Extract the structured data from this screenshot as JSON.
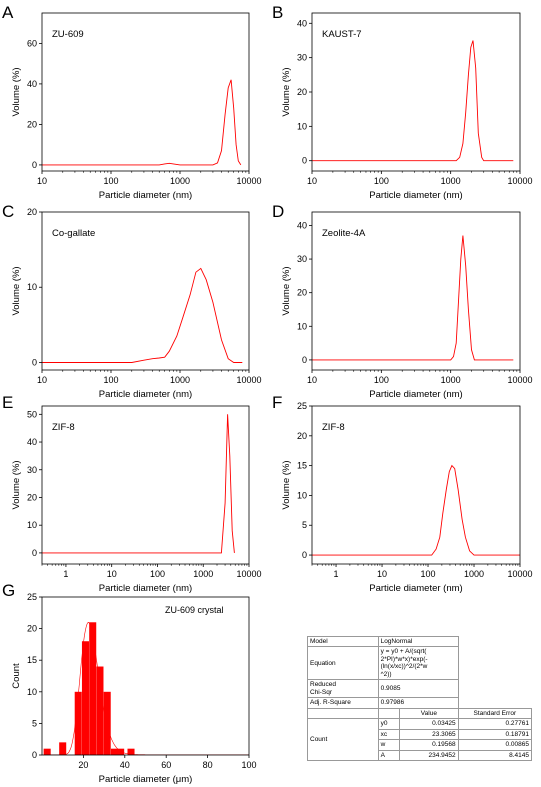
{
  "chart_data": [
    {
      "panel_letter": "A",
      "type": "line",
      "annotation": "ZU-609",
      "xlabel": "Particle diameter (nm)",
      "ylabel": "Volume (%)",
      "xscale": "log",
      "xlim": [
        10,
        10000
      ],
      "ylim": [
        -3,
        75
      ],
      "xticks": [
        10,
        100,
        1000,
        10000
      ],
      "xtick_labels": [
        "10",
        "100",
        "1000",
        "10000"
      ],
      "yticks": [
        0,
        20,
        40,
        60
      ],
      "ytick_labels": [
        "0",
        "20",
        "40",
        "60"
      ],
      "series": [
        {
          "color": "#ff0000",
          "x": [
            10,
            500,
            600,
            700,
            800,
            1000,
            3000,
            3500,
            4000,
            4500,
            5000,
            5500,
            6000,
            6500,
            7000,
            7600
          ],
          "y": [
            0,
            0,
            0.5,
            0.8,
            0.5,
            0,
            0,
            1,
            7,
            25,
            38,
            42,
            28,
            10,
            2,
            0
          ]
        }
      ]
    },
    {
      "panel_letter": "B",
      "type": "line",
      "annotation": "KAUST-7",
      "xlabel": "Particle diameter (nm)",
      "ylabel": "Volume (%)",
      "xscale": "log",
      "xlim": [
        10,
        10000
      ],
      "ylim": [
        -3,
        43
      ],
      "xticks": [
        10,
        100,
        1000,
        10000
      ],
      "xtick_labels": [
        "10",
        "100",
        "1000",
        "10000"
      ],
      "yticks": [
        0,
        10,
        20,
        30,
        40
      ],
      "ytick_labels": [
        "0",
        "10",
        "20",
        "30",
        "40"
      ],
      "series": [
        {
          "color": "#ff0000",
          "x": [
            10,
            1200,
            1350,
            1500,
            1650,
            1800,
            1950,
            2100,
            2300,
            2500,
            2800,
            3000,
            8000
          ],
          "y": [
            0,
            0,
            1,
            5,
            14,
            25,
            33,
            35,
            27,
            8,
            1,
            0,
            0
          ]
        }
      ]
    },
    {
      "panel_letter": "C",
      "type": "line",
      "annotation": "Co-gallate",
      "xlabel": "Particle diameter (nm)",
      "ylabel": "Volume (%)",
      "xscale": "log",
      "xlim": [
        10,
        10000
      ],
      "ylim": [
        -1,
        20
      ],
      "xticks": [
        10,
        100,
        1000,
        10000
      ],
      "xtick_labels": [
        "10",
        "100",
        "1000",
        "10000"
      ],
      "yticks": [
        0,
        10,
        20
      ],
      "ytick_labels": [
        "0",
        "10",
        "20"
      ],
      "series": [
        {
          "color": "#ff0000",
          "x": [
            10,
            200,
            300,
            400,
            500,
            600,
            700,
            900,
            1100,
            1400,
            1700,
            2000,
            2400,
            3000,
            4000,
            5000,
            6000,
            8000
          ],
          "y": [
            0,
            0,
            0.3,
            0.5,
            0.6,
            0.7,
            1.5,
            3.5,
            6,
            9,
            12,
            12.5,
            11,
            8,
            3,
            0.5,
            0,
            0
          ]
        }
      ]
    },
    {
      "panel_letter": "D",
      "type": "line",
      "annotation": "Zeolite-4A",
      "xlabel": "Particle diameter (nm)",
      "ylabel": "Volume (%)",
      "xscale": "log",
      "xlim": [
        10,
        10000
      ],
      "ylim": [
        -3,
        44
      ],
      "xticks": [
        10,
        100,
        1000,
        10000
      ],
      "xtick_labels": [
        "10",
        "100",
        "1000",
        "10000"
      ],
      "yticks": [
        0,
        10,
        20,
        30,
        40
      ],
      "ytick_labels": [
        "0",
        "10",
        "20",
        "30",
        "40"
      ],
      "series": [
        {
          "color": "#ff0000",
          "x": [
            10,
            1000,
            1100,
            1200,
            1300,
            1400,
            1500,
            1650,
            1800,
            2000,
            2200,
            8000
          ],
          "y": [
            0,
            0,
            1,
            5,
            18,
            30,
            37,
            28,
            15,
            3,
            0,
            0
          ]
        }
      ]
    },
    {
      "panel_letter": "E",
      "type": "line",
      "annotation": "ZIF-8",
      "xlabel": "Particle diameter (nm)",
      "ylabel": "Volume (%)",
      "xscale": "log",
      "xlim": [
        0.3,
        10000
      ],
      "ylim": [
        -4,
        53
      ],
      "xticks": [
        1,
        10,
        100,
        1000,
        10000
      ],
      "xtick_labels": [
        "1",
        "10",
        "100",
        "1000",
        "10000"
      ],
      "yticks": [
        0,
        10,
        20,
        30,
        40,
        50
      ],
      "ytick_labels": [
        "0",
        "10",
        "20",
        "30",
        "40",
        "50"
      ],
      "series": [
        {
          "color": "#ff0000",
          "x": [
            0.3,
            2500,
            3000,
            3400,
            3800,
            4300,
            4800
          ],
          "y": [
            0,
            0,
            18,
            50,
            35,
            8,
            0
          ]
        }
      ]
    },
    {
      "panel_letter": "F",
      "type": "line",
      "annotation": "ZIF-8",
      "xlabel": "Particle diameter (nm)",
      "ylabel": "Volume (%)",
      "xscale": "log",
      "xlim": [
        0.3,
        10000
      ],
      "ylim": [
        -1.5,
        25
      ],
      "xticks": [
        1,
        10,
        100,
        1000,
        10000
      ],
      "xtick_labels": [
        "1",
        "10",
        "100",
        "1000",
        "10000"
      ],
      "yticks": [
        0,
        5,
        10,
        15,
        20,
        25
      ],
      "ytick_labels": [
        "0",
        "5",
        "10",
        "15",
        "20",
        "25"
      ],
      "series": [
        {
          "color": "#ff0000",
          "x": [
            0.3,
            120,
            150,
            180,
            210,
            250,
            290,
            330,
            380,
            450,
            550,
            650,
            800,
            1000,
            10000
          ],
          "y": [
            0,
            0,
            1,
            3,
            7,
            11,
            14,
            15,
            14.5,
            11,
            6,
            3,
            0.7,
            0,
            0
          ]
        }
      ]
    },
    {
      "panel_letter": "G",
      "type": "bar",
      "annotation": "ZU-609 crystal",
      "xlabel": "Particle diameter (μm)",
      "ylabel": "Count",
      "xlim": [
        0,
        100
      ],
      "ylim": [
        0,
        25
      ],
      "xticks": [
        20,
        40,
        60,
        80,
        100
      ],
      "xtick_labels": [
        "20",
        "40",
        "60",
        "80",
        "100"
      ],
      "yticks": [
        0,
        5,
        10,
        15,
        20,
        25
      ],
      "ytick_labels": [
        "0",
        "5",
        "10",
        "15",
        "20",
        "25"
      ],
      "x": [
        2.5,
        10,
        17.5,
        21,
        24.5,
        28,
        31.5,
        35,
        38,
        43
      ],
      "values": [
        1,
        2,
        10,
        18,
        21,
        14,
        10,
        1,
        1,
        1
      ],
      "bar_color": "#ff0000",
      "fit_curve": {
        "model": "LogNormal",
        "y0": 0.03425,
        "xc": 23.3065,
        "w": 0.19568,
        "A": 234.9452
      }
    }
  ],
  "fit_table": {
    "model_label": "Model",
    "model_value": "LogNormal",
    "equation_label": "Equation",
    "equation_lines": [
      "y = y0 + A/(sqrt(",
      "2*PI)*w*x)*exp(-",
      "(ln(x/xc))^2/(2*w",
      "^2))"
    ],
    "chisq_label_1": "Reduced",
    "chisq_label_2": "Chi-Sqr",
    "chisq_value": "0.9085",
    "r2_label": "Adj. R-Square",
    "r2_value": "0.97986",
    "value_header": "Value",
    "stderr_header": "Standard Error",
    "row_group_label": "Count",
    "params": [
      {
        "name": "y0",
        "value": "0.03425",
        "error": "0.27761"
      },
      {
        "name": "xc",
        "value": "23.3065",
        "error": "0.18791"
      },
      {
        "name": "w",
        "value": "0.19568",
        "error": "0.00865"
      },
      {
        "name": "A",
        "value": "234.9452",
        "error": "8.4145"
      }
    ]
  }
}
